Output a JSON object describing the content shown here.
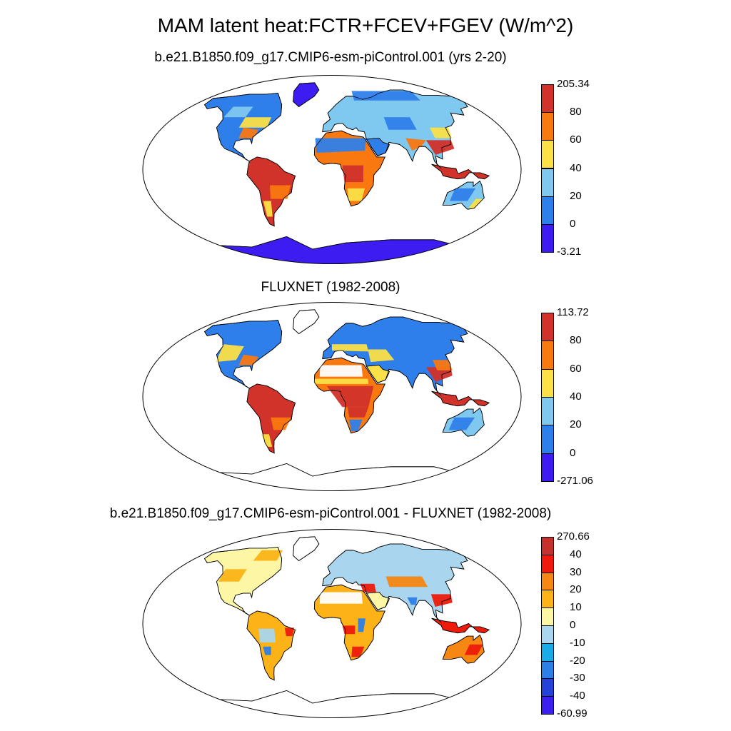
{
  "title": "MAM latent heat:FCTR+FCEV+FGEV (W/m^2)",
  "panels": [
    {
      "id": "model",
      "subtitle": "b.e21.B1850.f09_g17.CMIP6-esm-piControl.001 (yrs 2-20)",
      "colorbar": {
        "colors": [
          "#3d1cf2",
          "#2f7fea",
          "#7fc8ef",
          "#fbe047",
          "#f97810",
          "#d1322a"
        ],
        "labels": [
          "-3.21",
          "0",
          "20",
          "40",
          "60",
          "80",
          "205.34"
        ]
      }
    },
    {
      "id": "obs",
      "subtitle": "FLUXNET (1982-2008)",
      "colorbar": {
        "colors": [
          "#3d1cf2",
          "#2f7fea",
          "#7fc8ef",
          "#fbe047",
          "#f97810",
          "#d1322a"
        ],
        "labels": [
          "-271.06",
          "0",
          "20",
          "40",
          "60",
          "80",
          "113.72"
        ]
      }
    },
    {
      "id": "diff",
      "subtitle": "b.e21.B1850.f09_g17.CMIP6-esm-piControl.001 - FLUXNET (1982-2008)",
      "colorbar": {
        "colors": [
          "#3a1ff0",
          "#2442d8",
          "#2d7fe6",
          "#1aace8",
          "#a9d6ee",
          "#fdf6a4",
          "#fbb317",
          "#f58712",
          "#ee1a0c",
          "#c5312c"
        ],
        "labels": [
          "-60.99",
          "-40",
          "-30",
          "-20",
          "-10",
          "0",
          "10",
          "20",
          "30",
          "40",
          "270.66"
        ]
      }
    }
  ]
}
